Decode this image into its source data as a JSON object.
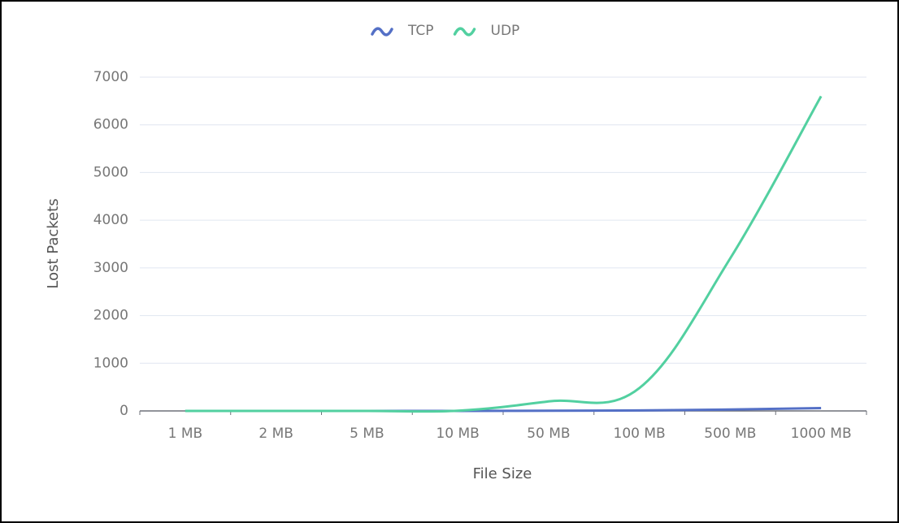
{
  "chart_data": {
    "type": "line",
    "x_label": "File Size",
    "y_label": "Lost Packets",
    "categories": [
      "1 MB",
      "2 MB",
      "5 MB",
      "10 MB",
      "50 MB",
      "100 MB",
      "500 MB",
      "1000 MB"
    ],
    "series": [
      {
        "name": "TCP",
        "color": "#5470c6",
        "values": [
          0,
          0,
          0,
          0,
          5,
          10,
          30,
          60
        ]
      },
      {
        "name": "UDP",
        "color": "#52d0a0",
        "values": [
          0,
          0,
          0,
          5,
          200,
          480,
          3200,
          6600
        ]
      }
    ],
    "ylim": [
      0,
      7000
    ],
    "yticks": [
      0,
      1000,
      2000,
      3000,
      4000,
      5000,
      6000,
      7000
    ],
    "grid": true,
    "legend": "top",
    "smooth": true
  }
}
